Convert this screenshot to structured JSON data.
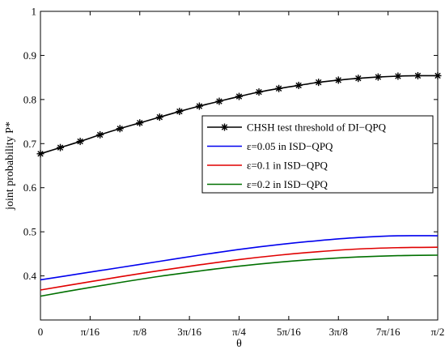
{
  "chart_data": {
    "type": "line",
    "xlabel": "θ",
    "ylabel": "joint probability P*",
    "xlim": [
      0,
      1.5708
    ],
    "ylim": [
      0.3,
      1
    ],
    "grid": false,
    "legend_position": "right",
    "x_ticks": [
      {
        "value": 0,
        "label": "0"
      },
      {
        "value": 0.19635,
        "label": "π/16"
      },
      {
        "value": 0.3927,
        "label": "π/8"
      },
      {
        "value": 0.58905,
        "label": "3π/16"
      },
      {
        "value": 0.7854,
        "label": "π/4"
      },
      {
        "value": 0.98175,
        "label": "5π/16"
      },
      {
        "value": 1.1781,
        "label": "3π/8"
      },
      {
        "value": 1.37445,
        "label": "7π/16"
      },
      {
        "value": 1.5708,
        "label": "π/2"
      }
    ],
    "y_ticks": [
      {
        "value": 0.4,
        "label": "0.4"
      },
      {
        "value": 0.5,
        "label": "0.5"
      },
      {
        "value": 0.6,
        "label": "0.6"
      },
      {
        "value": 0.7,
        "label": "0.7"
      },
      {
        "value": 0.8,
        "label": "0.8"
      },
      {
        "value": 0.9,
        "label": "0.9"
      },
      {
        "value": 1,
        "label": "1"
      }
    ],
    "series": [
      {
        "name": "CHSH test threshold of DI−QPQ",
        "color": "#000000",
        "marker": "asterisk",
        "x": [
          0,
          0.0785,
          0.1571,
          0.2356,
          0.3142,
          0.3927,
          0.4712,
          0.5498,
          0.6283,
          0.7069,
          0.7854,
          0.8639,
          0.9425,
          1.021,
          1.0996,
          1.1781,
          1.2566,
          1.3352,
          1.4137,
          1.4923,
          1.5708
        ],
        "y": [
          0.677,
          0.691,
          0.705,
          0.72,
          0.734,
          0.747,
          0.76,
          0.773,
          0.785,
          0.796,
          0.807,
          0.817,
          0.825,
          0.832,
          0.839,
          0.844,
          0.848,
          0.851,
          0.853,
          0.854,
          0.854
        ]
      },
      {
        "name": "ε=0.05 in ISD−QPQ",
        "color": "#0000ee",
        "marker": "none",
        "x": [
          0,
          0.1571,
          0.3142,
          0.4712,
          0.6283,
          0.7854,
          0.9425,
          1.0996,
          1.2566,
          1.4137,
          1.5708
        ],
        "y": [
          0.391,
          0.405,
          0.419,
          0.433,
          0.447,
          0.46,
          0.471,
          0.48,
          0.487,
          0.491,
          0.491
        ]
      },
      {
        "name": "ε=0.1 in ISD−QPQ",
        "color": "#e00000",
        "marker": "none",
        "x": [
          0,
          0.1571,
          0.3142,
          0.4712,
          0.6283,
          0.7854,
          0.9425,
          1.0996,
          1.2566,
          1.4137,
          1.5708
        ],
        "y": [
          0.368,
          0.383,
          0.398,
          0.412,
          0.425,
          0.437,
          0.447,
          0.455,
          0.461,
          0.464,
          0.465
        ]
      },
      {
        "name": "ε=0.2 in ISD−QPQ",
        "color": "#007000",
        "marker": "none",
        "x": [
          0,
          0.1571,
          0.3142,
          0.4712,
          0.6283,
          0.7854,
          0.9425,
          1.0996,
          1.2566,
          1.4137,
          1.5708
        ],
        "y": [
          0.354,
          0.37,
          0.385,
          0.399,
          0.411,
          0.422,
          0.431,
          0.438,
          0.443,
          0.446,
          0.447
        ]
      }
    ]
  }
}
